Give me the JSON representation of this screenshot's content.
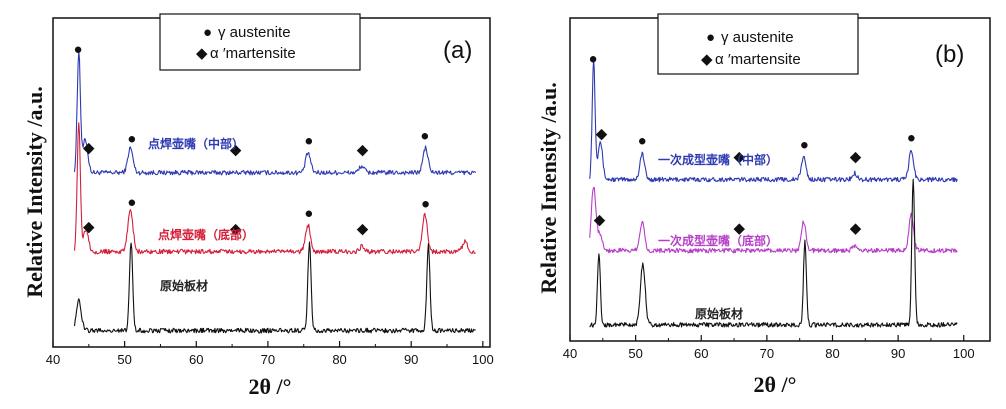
{
  "chart_data": [
    {
      "type": "line",
      "panel_label": "(a)",
      "xlabel": "2θ /°",
      "ylabel": "Relative Intensity /a.u.",
      "xlim": [
        40,
        101
      ],
      "ylim": [
        0,
        10
      ],
      "xticks": [
        40,
        50,
        60,
        70,
        80,
        90,
        100
      ],
      "legend": {
        "position": "top-center",
        "entries": [
          {
            "marker": "●",
            "label": "γ austenite"
          },
          {
            "marker": "◆",
            "label": "α ′martensite"
          }
        ]
      },
      "series": [
        {
          "name": "点焊壶嘴（中部）",
          "color": "#2e3bb0",
          "baseline": 5.3,
          "x_range": [
            43,
            99
          ],
          "peaks": [
            {
              "x": 43.6,
              "height": 3.7,
              "phase": "γ austenite"
            },
            {
              "x": 44.5,
              "height": 1.0,
              "phase": "α ′martensite"
            },
            {
              "x": 50.8,
              "height": 0.75,
              "phase": "γ austenite"
            },
            {
              "x": 75.6,
              "height": 0.6,
              "phase": "γ austenite"
            },
            {
              "x": 83.1,
              "height": 0.2,
              "phase": "α ′martensite"
            },
            {
              "x": 92.0,
              "height": 0.75,
              "phase": "γ austenite"
            }
          ],
          "markers": [
            {
              "x": 43.5,
              "symbol": "●"
            },
            {
              "x": 45.0,
              "symbol": "◆"
            },
            {
              "x": 51.0,
              "symbol": "●"
            },
            {
              "x": 65.5,
              "symbol": "◆"
            },
            {
              "x": 75.7,
              "symbol": "●"
            },
            {
              "x": 83.2,
              "symbol": "◆"
            },
            {
              "x": 91.9,
              "symbol": "●"
            }
          ]
        },
        {
          "name": "点焊壶嘴（底部）",
          "color": "#d41f3a",
          "baseline": 2.9,
          "x_range": [
            43,
            99
          ],
          "peaks": [
            {
              "x": 43.6,
              "height": 3.9,
              "phase": "γ austenite"
            },
            {
              "x": 44.6,
              "height": 0.7,
              "phase": "α ′martensite"
            },
            {
              "x": 50.8,
              "height": 1.3,
              "phase": "γ austenite"
            },
            {
              "x": 75.6,
              "height": 0.8,
              "phase": "γ austenite"
            },
            {
              "x": 83.1,
              "height": 0.15,
              "phase": "α ′martensite"
            },
            {
              "x": 91.9,
              "height": 1.1,
              "phase": "γ austenite"
            },
            {
              "x": 97.5,
              "height": 0.3,
              "phase": ""
            }
          ],
          "markers": [
            {
              "x": 45.0,
              "symbol": "◆"
            },
            {
              "x": 51.0,
              "symbol": "●"
            },
            {
              "x": 65.5,
              "symbol": "◆"
            },
            {
              "x": 75.7,
              "symbol": "●"
            },
            {
              "x": 83.2,
              "symbol": "◆"
            },
            {
              "x": 92.0,
              "symbol": "●"
            }
          ]
        },
        {
          "name": "原始板材",
          "color": "#111111",
          "baseline": 0.5,
          "x_range": [
            43,
            99
          ],
          "peaks": [
            {
              "x": 43.6,
              "height": 0.9,
              "phase": "γ austenite"
            },
            {
              "x": 50.9,
              "height": 2.7,
              "phase": "γ austenite"
            },
            {
              "x": 75.8,
              "height": 2.7,
              "phase": "γ austenite"
            },
            {
              "x": 92.4,
              "height": 2.6,
              "phase": "γ austenite"
            }
          ],
          "markers": []
        }
      ]
    },
    {
      "type": "line",
      "panel_label": "(b)",
      "xlabel": "2θ /°",
      "ylabel": "Relative Intensity /a.u.",
      "xlim": [
        40,
        104
      ],
      "ylim": [
        0,
        10
      ],
      "xticks": [
        40,
        50,
        60,
        70,
        80,
        90,
        100
      ],
      "legend": {
        "position": "top-center",
        "entries": [
          {
            "marker": "●",
            "label": "γ  austenite"
          },
          {
            "marker": "◆",
            "label": "α ′martensite"
          }
        ]
      },
      "series": [
        {
          "name": "一次成型壶嘴（中部）",
          "color": "#2e3bb0",
          "baseline": 5.0,
          "x_range": [
            43,
            99
          ],
          "peaks": [
            {
              "x": 43.6,
              "height": 3.7,
              "phase": "γ austenite"
            },
            {
              "x": 44.6,
              "height": 1.2,
              "phase": "α ′martensite"
            },
            {
              "x": 51.0,
              "height": 0.8,
              "phase": "γ austenite"
            },
            {
              "x": 75.6,
              "height": 0.7,
              "phase": "γ austenite"
            },
            {
              "x": 83.4,
              "height": 0.2,
              "phase": "α ′martensite"
            },
            {
              "x": 92.0,
              "height": 0.9,
              "phase": "γ austenite"
            }
          ],
          "markers": [
            {
              "x": 43.5,
              "symbol": "●"
            },
            {
              "x": 44.8,
              "symbol": "◆"
            },
            {
              "x": 51.0,
              "symbol": "●"
            },
            {
              "x": 65.8,
              "symbol": "◆"
            },
            {
              "x": 75.7,
              "symbol": "●"
            },
            {
              "x": 83.5,
              "symbol": "◆"
            },
            {
              "x": 92.0,
              "symbol": "●"
            }
          ]
        },
        {
          "name": "一次成型壶嘴（底部）",
          "color": "#b63fc7",
          "baseline": 2.8,
          "x_range": [
            43,
            99
          ],
          "peaks": [
            {
              "x": 43.6,
              "height": 2.0,
              "phase": "γ austenite"
            },
            {
              "x": 44.6,
              "height": 0.5,
              "phase": "α ′martensite"
            },
            {
              "x": 51.0,
              "height": 0.9,
              "phase": "γ austenite"
            },
            {
              "x": 75.6,
              "height": 0.9,
              "phase": "γ austenite"
            },
            {
              "x": 83.4,
              "height": 0.15,
              "phase": "α ′martensite"
            },
            {
              "x": 92.0,
              "height": 1.1,
              "phase": "γ austenite"
            }
          ],
          "markers": [
            {
              "x": 44.5,
              "symbol": "◆"
            },
            {
              "x": 65.8,
              "symbol": "◆"
            },
            {
              "x": 83.5,
              "symbol": "◆"
            }
          ]
        },
        {
          "name": "原始板材",
          "color": "#111111",
          "baseline": 0.5,
          "x_range": [
            43,
            99
          ],
          "peaks": [
            {
              "x": 44.4,
              "height": 2.2,
              "phase": "γ austenite"
            },
            {
              "x": 51.1,
              "height": 1.9,
              "phase": "γ austenite"
            },
            {
              "x": 75.8,
              "height": 2.6,
              "phase": "γ austenite"
            },
            {
              "x": 92.3,
              "height": 4.5,
              "phase": "γ austenite"
            }
          ],
          "markers": []
        }
      ]
    }
  ]
}
